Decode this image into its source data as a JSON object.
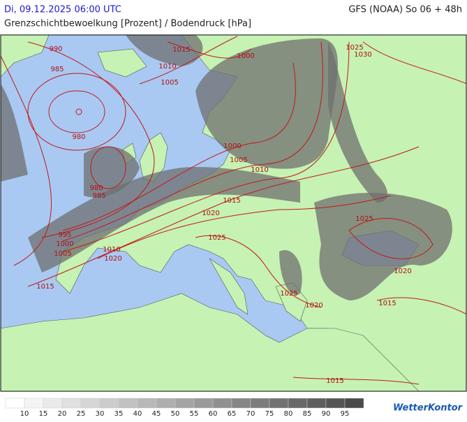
{
  "header": {
    "datetime": "Di, 09.12.2025 06:00 UTC",
    "model": "GFS (NOAA) So 06 + 48h",
    "subtitle": "Grenzschichtbewoelkung [Prozent] / Bodendruck [hPa]"
  },
  "isobar_labels": [
    "990",
    "985",
    "1015",
    "1010",
    "1005",
    "1000",
    "1025",
    "1030",
    "980",
    "1000",
    "1005",
    "1010",
    "980",
    "985",
    "1015",
    "1020",
    "1025",
    "1025",
    "995",
    "1000",
    "1005",
    "1010",
    "1020",
    "1020",
    "1015",
    "1025",
    "1020",
    "1015",
    "1015"
  ],
  "legend": {
    "values": [
      10,
      15,
      20,
      25,
      30,
      35,
      40,
      45,
      50,
      55,
      60,
      65,
      70,
      75,
      80,
      85,
      90,
      95
    ],
    "colors": [
      "#ffffff",
      "#f4f4f4",
      "#eaeaea",
      "#e0e0e0",
      "#d6d6d6",
      "#cccccc",
      "#c2c2c2",
      "#b8b8b8",
      "#aeaeae",
      "#a4a4a4",
      "#9a9a9a",
      "#909090",
      "#868686",
      "#7c7c7c",
      "#727272",
      "#686868",
      "#5e5e5e",
      "#545454",
      "#4a4a4a"
    ]
  },
  "brand": "WetterKontor"
}
